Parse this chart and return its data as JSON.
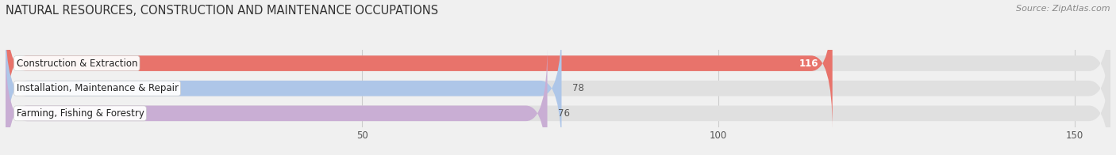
{
  "title": "NATURAL RESOURCES, CONSTRUCTION AND MAINTENANCE OCCUPATIONS",
  "source": "Source: ZipAtlas.com",
  "categories": [
    "Construction & Extraction",
    "Installation, Maintenance & Repair",
    "Farming, Fishing & Forestry"
  ],
  "values": [
    116,
    78,
    76
  ],
  "bar_colors": [
    "#e8736b",
    "#aec6e8",
    "#c9aed4"
  ],
  "background_color": "#f0f0f0",
  "bar_background_color": "#e0e0e0",
  "xlim": [
    0,
    155
  ],
  "xticks": [
    50,
    100,
    150
  ],
  "title_fontsize": 10.5,
  "source_fontsize": 8,
  "label_fontsize": 8.5,
  "value_fontsize": 8.5,
  "bar_height": 0.62
}
